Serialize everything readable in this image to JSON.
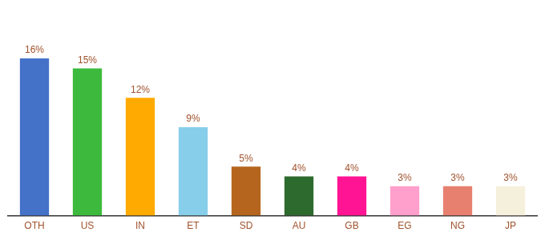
{
  "chart_data": {
    "type": "bar",
    "categories": [
      "OTH",
      "US",
      "IN",
      "ET",
      "SD",
      "AU",
      "GB",
      "EG",
      "NG",
      "JP"
    ],
    "values": [
      16,
      15,
      12,
      9,
      5,
      4,
      4,
      3,
      3,
      3
    ],
    "value_labels": [
      "16%",
      "15%",
      "12%",
      "9%",
      "5%",
      "4%",
      "4%",
      "3%",
      "3%",
      "3%"
    ],
    "colors": [
      "#4472c9",
      "#3dba3d",
      "#ffaa00",
      "#87ceeb",
      "#b5651d",
      "#2d6a2d",
      "#ff1493",
      "#ff9fcc",
      "#e88070",
      "#f5f0dc"
    ],
    "ylim": [
      0,
      20
    ],
    "grid": false,
    "data_labels": true,
    "tick_labels": "x"
  }
}
